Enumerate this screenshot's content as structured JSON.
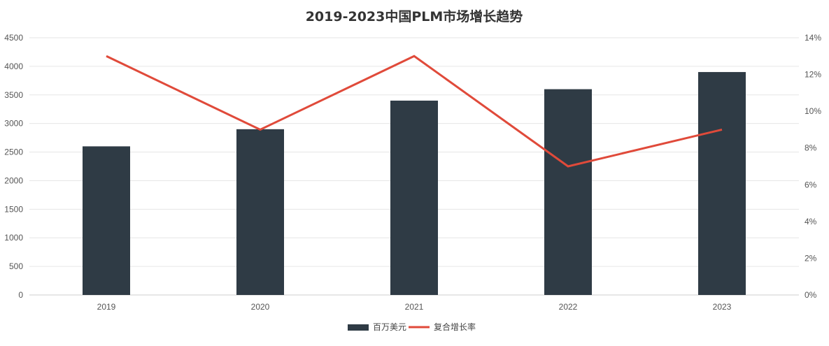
{
  "chart_data": {
    "type": "bar",
    "title": "2019-2023中国PLM市场增长趋势",
    "categories": [
      "2019",
      "2020",
      "2021",
      "2022",
      "2023"
    ],
    "series": [
      {
        "name": "百万美元",
        "type": "bar",
        "axis": "left",
        "values": [
          2600,
          2900,
          3400,
          3600,
          3900
        ],
        "color": "#2f3b45"
      },
      {
        "name": "复合增长率",
        "type": "line",
        "axis": "right",
        "values": [
          0.13,
          0.09,
          0.13,
          0.07,
          0.09
        ],
        "color": "#e04a3a"
      }
    ],
    "y_left": {
      "min": 0,
      "max": 4500,
      "ticks": [
        "0",
        "500",
        "1000",
        "1500",
        "2000",
        "2500",
        "3000",
        "3500",
        "4000",
        "4500"
      ]
    },
    "y_right": {
      "min": 0,
      "max": 0.14,
      "ticks": [
        "0%",
        "2%",
        "4%",
        "6%",
        "8%",
        "10%",
        "12%",
        "14%"
      ]
    },
    "grid": true,
    "legend": "bottom-center"
  }
}
